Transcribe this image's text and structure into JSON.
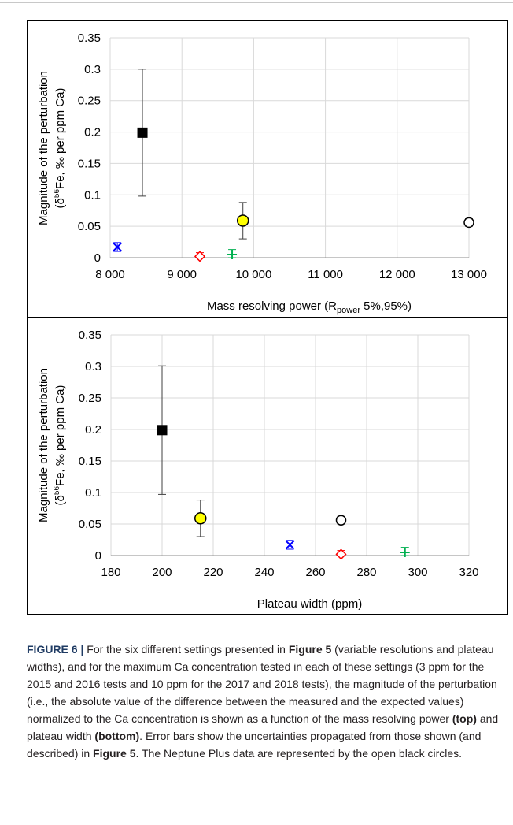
{
  "figure": {
    "label": "FIGURE 6",
    "separator": "|",
    "caption_segments": [
      {
        "text": " For the six different settings presented in ",
        "bold": false
      },
      {
        "text": "Figure 5",
        "bold": true
      },
      {
        "text": " (variable resolutions and plateau widths), and for the maximum Ca concentration tested in each of these settings (3 ppm for the 2015 and 2016 tests and 10 ppm for the 2017 and 2018 tests), the magnitude of the perturbation (i.e., the absolute value of the difference between the measured and the expected values) normalized to the Ca concentration is shown as a function of the mass resolving power ",
        "bold": false
      },
      {
        "text": "(top)",
        "bold": true
      },
      {
        "text": " and plateau width ",
        "bold": false
      },
      {
        "text": "(bottom)",
        "bold": true
      },
      {
        "text": ". Error bars show the uncertainties propagated from those shown (and described) in ",
        "bold": false
      },
      {
        "text": "Figure 5",
        "bold": true
      },
      {
        "text": ". The Neptune Plus data are represented by the open black circles.",
        "bold": false
      }
    ]
  },
  "chart_data": [
    {
      "type": "scatter",
      "title": "",
      "xlabel_parts": [
        "Mass resolving power (R",
        "power",
        " 5%,95%)"
      ],
      "ylabel_line1": "Magnitude of the perturbation",
      "ylabel_line2_parts": [
        "(δ",
        "56",
        "Fe, ‰ per ppm Ca)"
      ],
      "xlim": [
        8000,
        13000
      ],
      "ylim": [
        0,
        0.35
      ],
      "x_ticks": [
        8000,
        9000,
        10000,
        11000,
        12000,
        13000
      ],
      "x_tick_labels": [
        "8 000",
        "9 000",
        "10 000",
        "11 000",
        "12 000",
        "13 000"
      ],
      "y_ticks": [
        0,
        0.05,
        0.1,
        0.15,
        0.2,
        0.25,
        0.3,
        0.35
      ],
      "y_tick_labels": [
        "0",
        "0.05",
        "0.1",
        "0.15",
        "0.2",
        "0.25",
        "0.3",
        "0.35"
      ],
      "grid": true,
      "points": [
        {
          "marker": "square",
          "color": "#000000",
          "fill": "#000000",
          "x": 8450,
          "y": 0.199,
          "err_low": 0.098,
          "err_high": 0.3
        },
        {
          "marker": "circle",
          "color": "#000000",
          "fill": "#ffff00",
          "x": 9850,
          "y": 0.059,
          "err_low": 0.03,
          "err_high": 0.088
        },
        {
          "marker": "circle",
          "color": "#000000",
          "fill": "none",
          "x": 13000,
          "y": 0.056,
          "err_low": 0.05,
          "err_high": 0.062
        },
        {
          "marker": "xbar",
          "color": "#0000ff",
          "fill": "none",
          "x": 8100,
          "y": 0.017,
          "err_low": 0.01,
          "err_high": 0.024
        },
        {
          "marker": "diamond",
          "color": "#ff0000",
          "fill": "none",
          "x": 9250,
          "y": 0.002,
          "err_low": 0.0,
          "err_high": 0.008
        },
        {
          "marker": "plus",
          "color": "#00b050",
          "fill": "none",
          "x": 9700,
          "y": 0.005,
          "err_low": 0.0,
          "err_high": 0.013
        }
      ]
    },
    {
      "type": "scatter",
      "title": "",
      "xlabel_parts": [
        "Plateau width (ppm)",
        "",
        ""
      ],
      "ylabel_line1": "Magnitude of the perturbation",
      "ylabel_line2_parts": [
        "(δ",
        "56",
        "Fe, ‰ per ppm Ca)"
      ],
      "xlim": [
        180,
        320
      ],
      "ylim": [
        0,
        0.35
      ],
      "x_ticks": [
        180,
        200,
        220,
        240,
        260,
        280,
        300,
        320
      ],
      "x_tick_labels": [
        "180",
        "200",
        "220",
        "240",
        "260",
        "280",
        "300",
        "320"
      ],
      "y_ticks": [
        0,
        0.05,
        0.1,
        0.15,
        0.2,
        0.25,
        0.3,
        0.35
      ],
      "y_tick_labels": [
        "0",
        "0.05",
        "0.1",
        "0.15",
        "0.2",
        "0.25",
        "0.3",
        "0.35"
      ],
      "grid": true,
      "points": [
        {
          "marker": "square",
          "color": "#000000",
          "fill": "#000000",
          "x": 200,
          "y": 0.199,
          "err_low": 0.097,
          "err_high": 0.301
        },
        {
          "marker": "circle",
          "color": "#000000",
          "fill": "#ffff00",
          "x": 215,
          "y": 0.059,
          "err_low": 0.03,
          "err_high": 0.088
        },
        {
          "marker": "circle",
          "color": "#000000",
          "fill": "none",
          "x": 270,
          "y": 0.056,
          "err_low": 0.05,
          "err_high": 0.062
        },
        {
          "marker": "xbar",
          "color": "#0000ff",
          "fill": "none",
          "x": 250,
          "y": 0.017,
          "err_low": 0.01,
          "err_high": 0.024
        },
        {
          "marker": "diamond",
          "color": "#ff0000",
          "fill": "none",
          "x": 270,
          "y": 0.002,
          "err_low": 0.0,
          "err_high": 0.008
        },
        {
          "marker": "plus",
          "color": "#00b050",
          "fill": "none",
          "x": 295,
          "y": 0.005,
          "err_low": 0.0,
          "err_high": 0.013
        }
      ]
    }
  ]
}
